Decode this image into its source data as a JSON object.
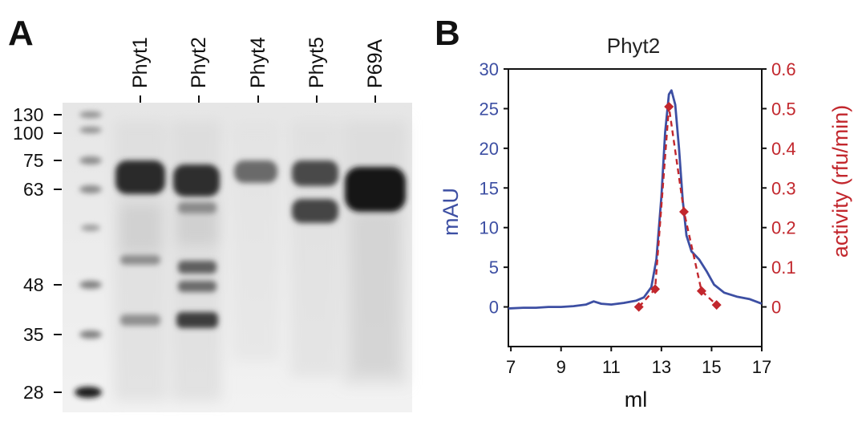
{
  "figure": {
    "panel_a_letter": "A",
    "panel_b_letter": "B"
  },
  "gel": {
    "mw_markers": [
      "130",
      "100",
      "75",
      "63",
      "48",
      "35",
      "28"
    ],
    "lanes": [
      "Phyt1",
      "Phyt2",
      "Phyt4",
      "Phyt5",
      "P69A"
    ]
  },
  "chart_data": {
    "type": "line",
    "title": "Phyt2",
    "xlabel": "ml",
    "ylabel": "mAU",
    "y2label": "activity (rfu/min)",
    "xlim": [
      6.9,
      17
    ],
    "ylim": [
      -5,
      30
    ],
    "y2lim": [
      -0.1,
      0.6
    ],
    "x_ticks": [
      "7",
      "9",
      "11",
      "13",
      "15",
      "17"
    ],
    "y_ticks": [
      "0",
      "5",
      "10",
      "15",
      "20",
      "25",
      "30"
    ],
    "y2_ticks": [
      "0",
      "0.1",
      "0.2",
      "0.3",
      "0.4",
      "0.5",
      "0.6"
    ],
    "colors": {
      "mAU": "#3d4fa3",
      "activity": "#c2272d"
    },
    "series": [
      {
        "name": "mAU",
        "axis": "left",
        "style": "solid",
        "x": [
          6.9,
          7.5,
          8.0,
          8.5,
          9.0,
          9.5,
          10.0,
          10.3,
          10.6,
          11.0,
          11.5,
          12.0,
          12.3,
          12.6,
          12.8,
          13.0,
          13.15,
          13.3,
          13.4,
          13.55,
          13.7,
          13.85,
          14.0,
          14.2,
          14.5,
          14.8,
          15.1,
          15.5,
          16.0,
          16.5,
          17.0
        ],
        "values": [
          -0.2,
          -0.1,
          -0.1,
          0.0,
          0.0,
          0.1,
          0.3,
          0.7,
          0.4,
          0.3,
          0.5,
          0.8,
          1.2,
          2.5,
          6.0,
          14.0,
          22.0,
          26.8,
          27.3,
          25.5,
          20.0,
          13.5,
          9.0,
          7.0,
          6.0,
          4.5,
          2.8,
          1.8,
          1.3,
          1.0,
          0.4
        ]
      },
      {
        "name": "activity",
        "axis": "right",
        "style": "dashed",
        "x": [
          12.1,
          12.75,
          13.3,
          13.9,
          14.6,
          15.2
        ],
        "values": [
          0.0,
          0.045,
          0.505,
          0.24,
          0.04,
          0.005
        ]
      }
    ]
  }
}
